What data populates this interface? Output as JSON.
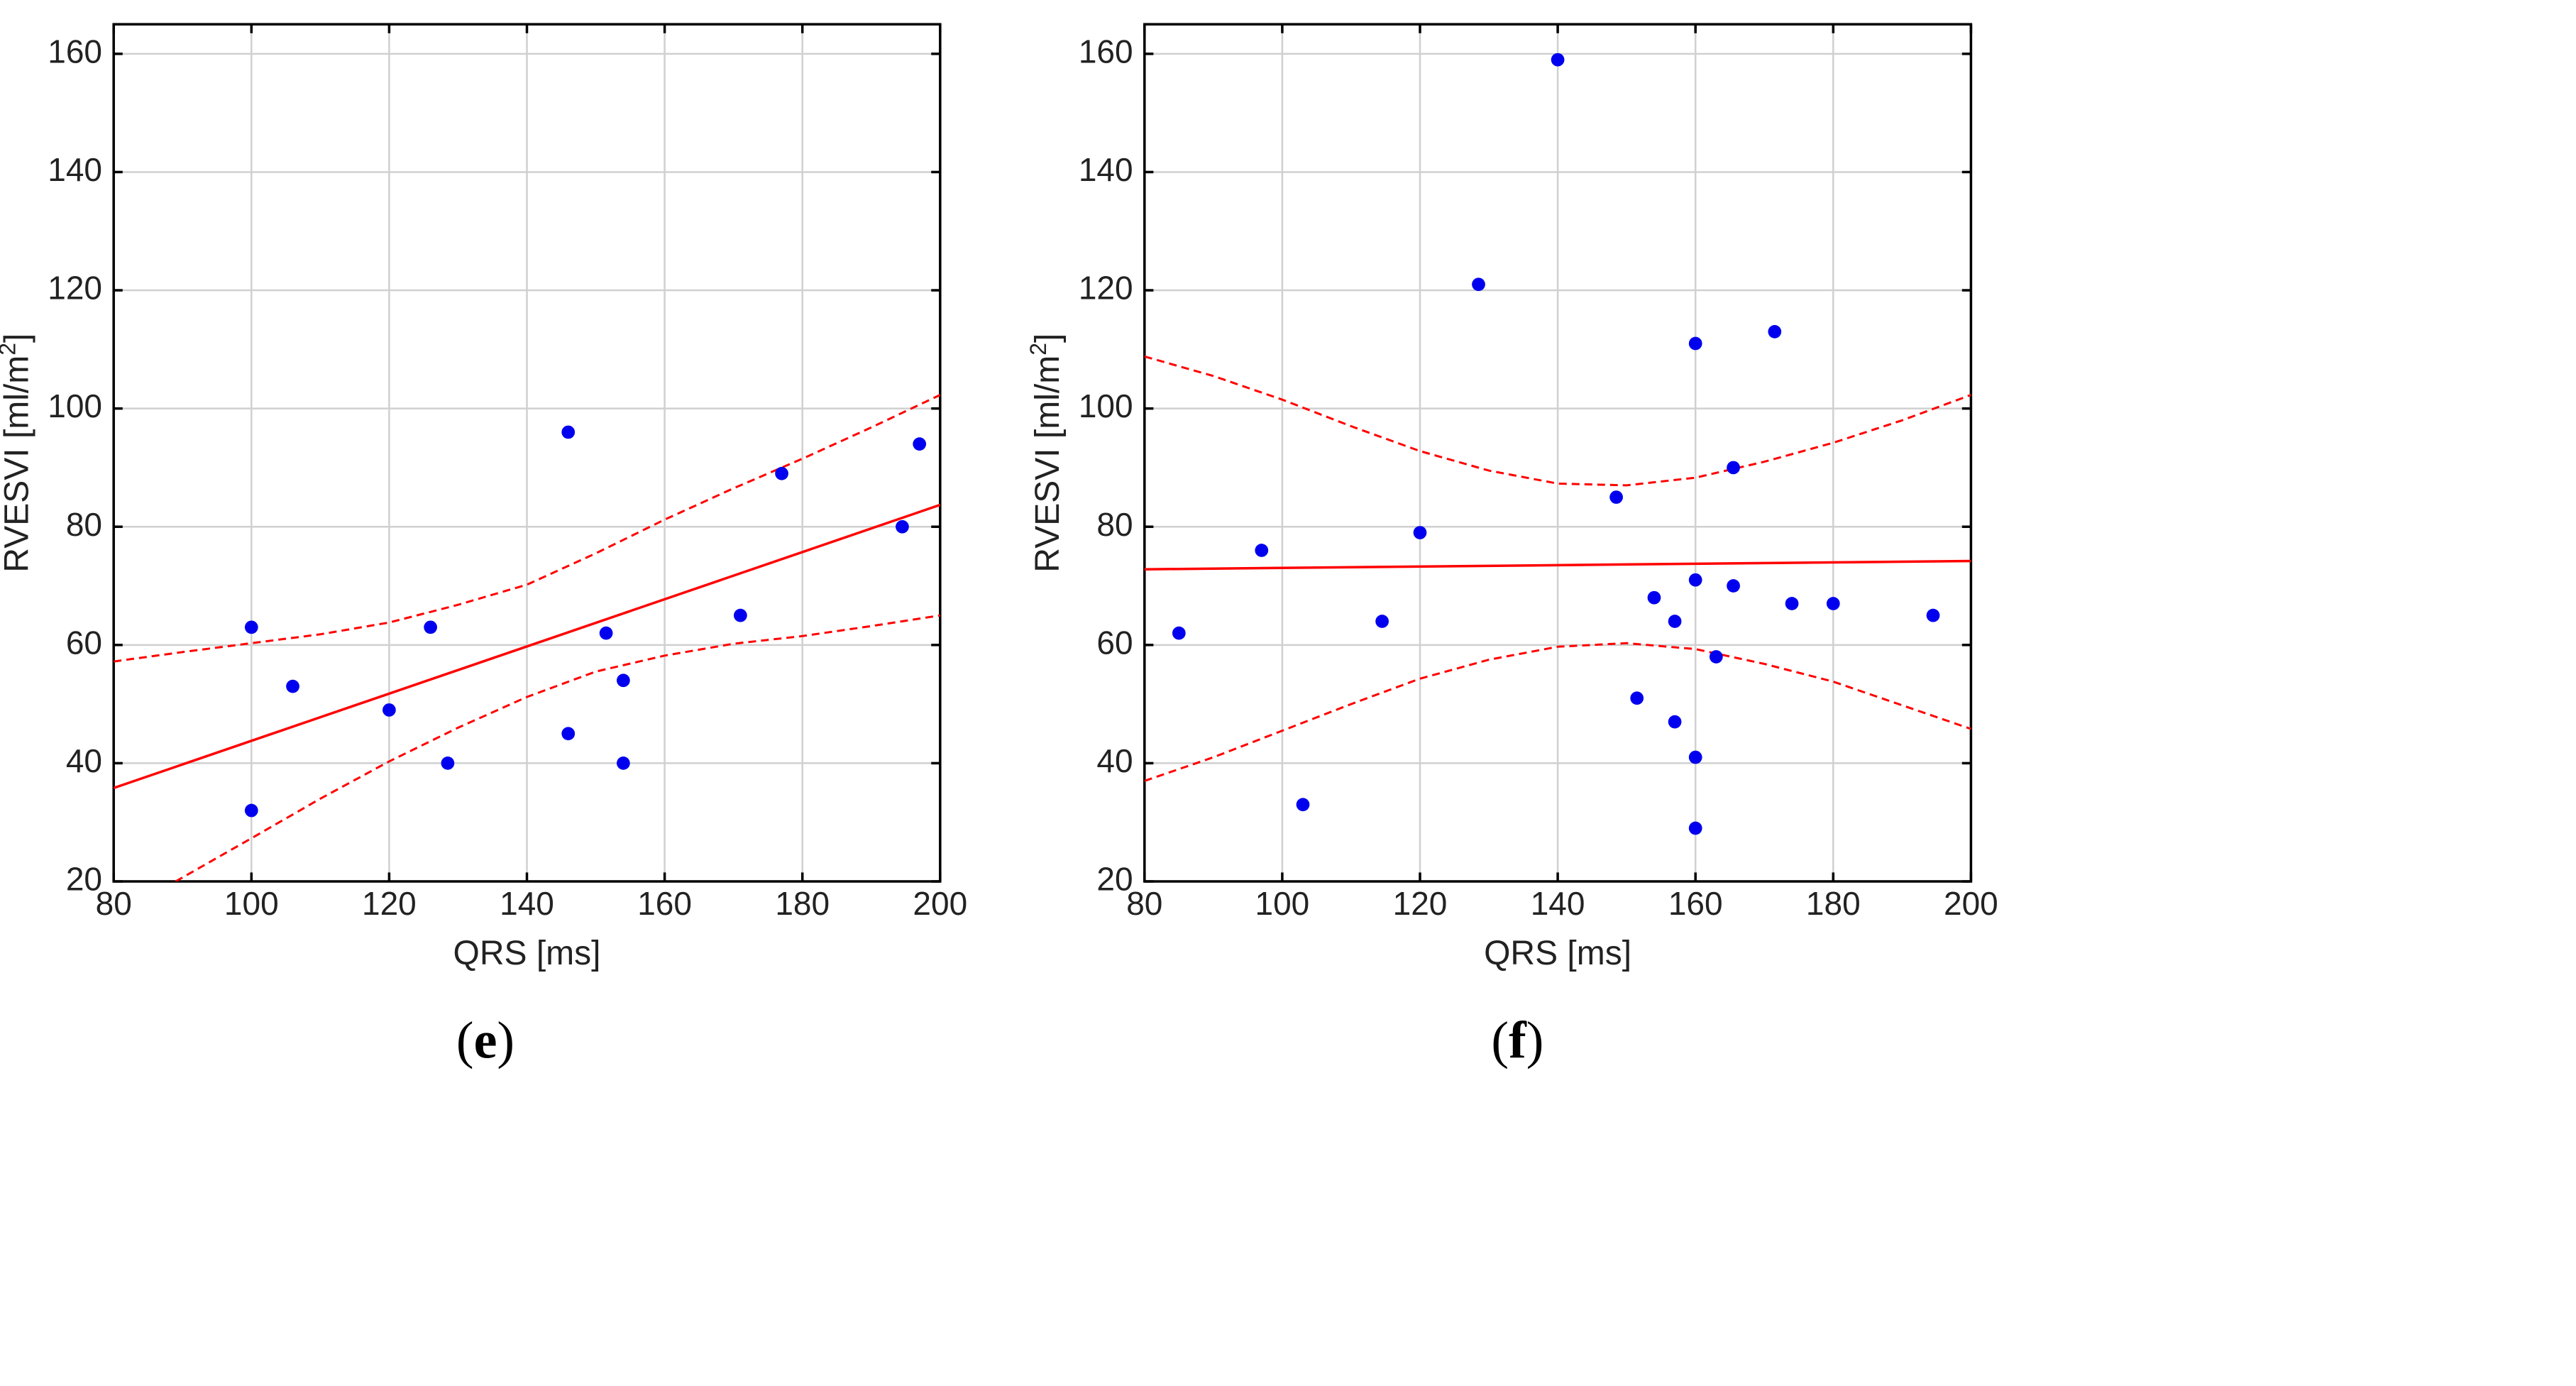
{
  "chart_data": [
    {
      "type": "scatter",
      "panel_label": "e",
      "xlabel": "QRS [ms]",
      "ylabel": "RVESVI [ml/m",
      "ylabel_sup": "2",
      "ylabel_end": "]",
      "xlim": [
        80,
        200
      ],
      "ylim": [
        20,
        165
      ],
      "xticks": [
        80,
        100,
        120,
        140,
        160,
        180,
        200
      ],
      "yticks": [
        20,
        40,
        60,
        80,
        100,
        120,
        140,
        160
      ],
      "grid": true,
      "points": [
        {
          "x": 100,
          "y": 63
        },
        {
          "x": 100,
          "y": 32
        },
        {
          "x": 106,
          "y": 53
        },
        {
          "x": 120,
          "y": 49
        },
        {
          "x": 126,
          "y": 63
        },
        {
          "x": 128.5,
          "y": 40
        },
        {
          "x": 146,
          "y": 96
        },
        {
          "x": 146,
          "y": 45
        },
        {
          "x": 151.5,
          "y": 62
        },
        {
          "x": 154,
          "y": 54
        },
        {
          "x": 154,
          "y": 40
        },
        {
          "x": 171,
          "y": 65
        },
        {
          "x": 177,
          "y": 89
        },
        {
          "x": 194.5,
          "y": 80
        },
        {
          "x": 197,
          "y": 94
        }
      ],
      "fit_line": [
        [
          80,
          35.8
        ],
        [
          200,
          83.7
        ]
      ],
      "ci_upper": [
        [
          80,
          57.2
        ],
        [
          90,
          58.8
        ],
        [
          100,
          60.3
        ],
        [
          110,
          61.8
        ],
        [
          120,
          63.8
        ],
        [
          130,
          66.8
        ],
        [
          140,
          70.2
        ],
        [
          150,
          75.5
        ],
        [
          160,
          81.2
        ],
        [
          170,
          86.5
        ],
        [
          180,
          91.5
        ],
        [
          190,
          96.8
        ],
        [
          200,
          102.3
        ]
      ],
      "ci_lower": [
        [
          89,
          20
        ],
        [
          100,
          27.3
        ],
        [
          110,
          34.0
        ],
        [
          120,
          40.3
        ],
        [
          130,
          46.0
        ],
        [
          140,
          51.2
        ],
        [
          150,
          55.5
        ],
        [
          160,
          58.2
        ],
        [
          170,
          60.2
        ],
        [
          180,
          61.5
        ],
        [
          190,
          63.2
        ],
        [
          200,
          65
        ]
      ]
    },
    {
      "type": "scatter",
      "panel_label": "f",
      "xlabel": "QRS [ms]",
      "ylabel": "RVESVI [ml/m",
      "ylabel_sup": "2",
      "ylabel_end": "]",
      "xlim": [
        80,
        200
      ],
      "ylim": [
        20,
        165
      ],
      "xticks": [
        80,
        100,
        120,
        140,
        160,
        180,
        200
      ],
      "yticks": [
        20,
        40,
        60,
        80,
        100,
        120,
        140,
        160
      ],
      "grid": true,
      "points": [
        {
          "x": 85,
          "y": 62
        },
        {
          "x": 97,
          "y": 76
        },
        {
          "x": 103,
          "y": 33
        },
        {
          "x": 114.5,
          "y": 64
        },
        {
          "x": 120,
          "y": 79
        },
        {
          "x": 128.5,
          "y": 121
        },
        {
          "x": 140,
          "y": 159
        },
        {
          "x": 148.5,
          "y": 85
        },
        {
          "x": 151.5,
          "y": 51
        },
        {
          "x": 154,
          "y": 68
        },
        {
          "x": 157,
          "y": 64
        },
        {
          "x": 157,
          "y": 47
        },
        {
          "x": 160,
          "y": 111
        },
        {
          "x": 160,
          "y": 71
        },
        {
          "x": 160,
          "y": 41
        },
        {
          "x": 160,
          "y": 29
        },
        {
          "x": 163,
          "y": 58
        },
        {
          "x": 165.5,
          "y": 90
        },
        {
          "x": 165.5,
          "y": 70
        },
        {
          "x": 171.5,
          "y": 113
        },
        {
          "x": 174,
          "y": 67
        },
        {
          "x": 180,
          "y": 67
        },
        {
          "x": 194.5,
          "y": 65
        }
      ],
      "fit_line": [
        [
          80,
          72.8
        ],
        [
          200,
          74.2
        ]
      ],
      "ci_upper": [
        [
          80,
          108.8
        ],
        [
          90,
          105.5
        ],
        [
          100,
          101.5
        ],
        [
          110,
          97.0
        ],
        [
          120,
          92.8
        ],
        [
          130,
          89.5
        ],
        [
          140,
          87.3
        ],
        [
          150,
          87.0
        ],
        [
          160,
          88.3
        ],
        [
          170,
          91.0
        ],
        [
          180,
          94.2
        ],
        [
          190,
          98.0
        ],
        [
          200,
          102.3
        ]
      ],
      "ci_lower": [
        [
          80,
          37.0
        ],
        [
          90,
          41.0
        ],
        [
          100,
          45.5
        ],
        [
          110,
          50.0
        ],
        [
          120,
          54.3
        ],
        [
          130,
          57.5
        ],
        [
          140,
          59.7
        ],
        [
          150,
          60.3
        ],
        [
          160,
          59.3
        ],
        [
          170,
          56.8
        ],
        [
          180,
          53.8
        ],
        [
          190,
          49.8
        ],
        [
          200,
          45.8
        ]
      ]
    }
  ]
}
